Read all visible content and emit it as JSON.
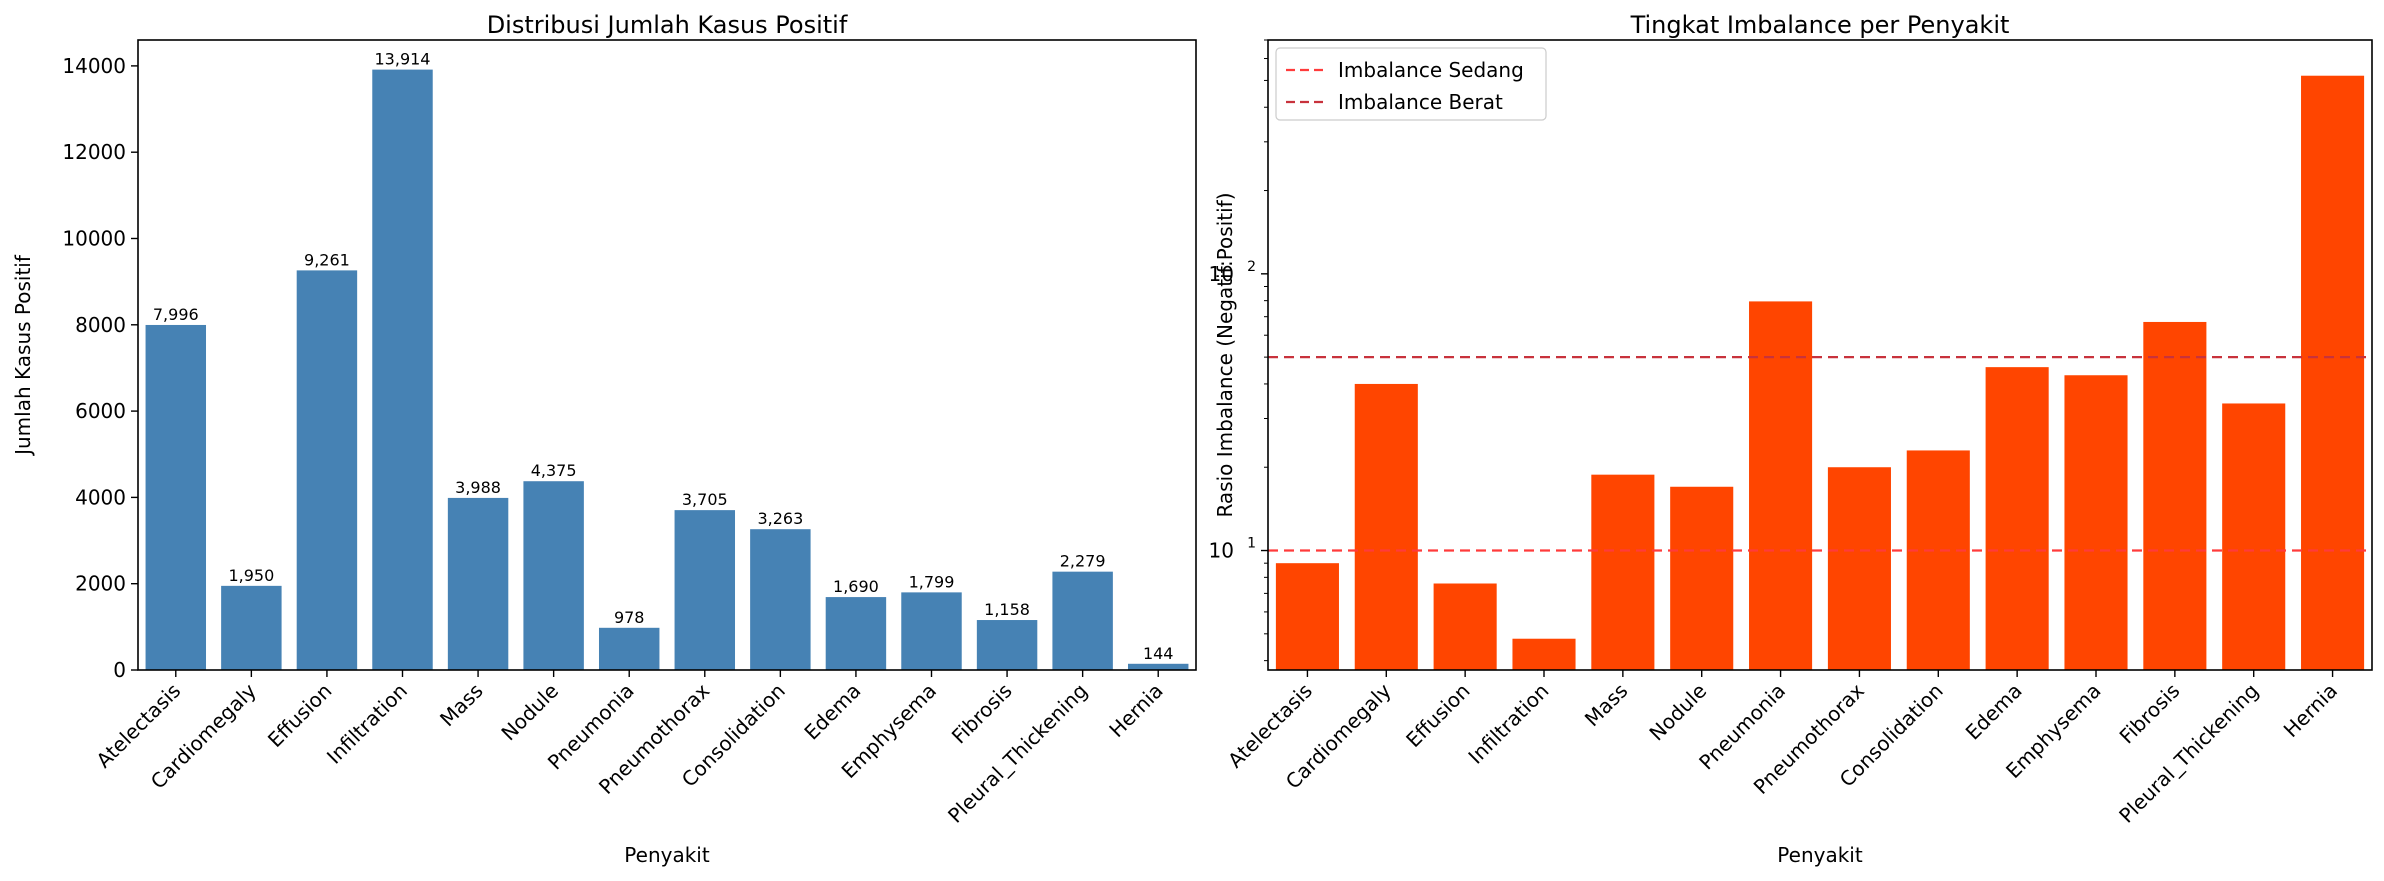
{
  "chart_data": [
    {
      "type": "bar",
      "title": "Distribusi Jumlah Kasus Positif",
      "xlabel": "Penyakit",
      "ylabel": "Jumlah Kasus Positif",
      "categories": [
        "Atelectasis",
        "Cardiomegaly",
        "Effusion",
        "Infiltration",
        "Mass",
        "Nodule",
        "Pneumonia",
        "Pneumothorax",
        "Consolidation",
        "Edema",
        "Emphysema",
        "Fibrosis",
        "Pleural_Thickening",
        "Hernia"
      ],
      "values": [
        7996,
        1950,
        9261,
        13914,
        3988,
        4375,
        978,
        3705,
        3263,
        1690,
        1799,
        1158,
        2279,
        144
      ],
      "data_labels": [
        "7,996",
        "1,950",
        "9,261",
        "13,914",
        "3,988",
        "4,375",
        "978",
        "3,705",
        "3,263",
        "1,690",
        "1,799",
        "1,158",
        "2,279",
        "144"
      ],
      "ylim": [
        0,
        14600
      ],
      "yticks": [
        0,
        2000,
        4000,
        6000,
        8000,
        10000,
        12000,
        14000
      ],
      "ytick_labels": [
        "0",
        "2000",
        "4000",
        "6000",
        "8000",
        "10000",
        "12000",
        "14000"
      ],
      "color": "#4682b4",
      "grid": false
    },
    {
      "type": "bar",
      "title": "Tingkat Imbalance per Penyakit",
      "xlabel": "Penyakit",
      "ylabel": "Rasio Imbalance (Negatif:Positif)",
      "yscale": "log",
      "categories": [
        "Atelectasis",
        "Cardiomegaly",
        "Effusion",
        "Infiltration",
        "Mass",
        "Nodule",
        "Pneumonia",
        "Pneumothorax",
        "Consolidation",
        "Edema",
        "Emphysema",
        "Fibrosis",
        "Pleural_Thickening",
        "Hernia"
      ],
      "values": [
        9.0,
        40.0,
        7.6,
        4.8,
        18.8,
        17.0,
        79.5,
        20.0,
        23.0,
        46.0,
        43.0,
        67.0,
        34.0,
        520.0
      ],
      "ylim": [
        3.7,
        700
      ],
      "yticks_major": [
        10,
        100
      ],
      "ytick_labels": [
        {
          "base": "10",
          "exp": "1"
        },
        {
          "base": "10",
          "exp": "2"
        }
      ],
      "color": "#ff4500",
      "grid": false,
      "legend_placement": "top-left",
      "hlines": [
        {
          "name": "Imbalance Sedang",
          "y": 10,
          "color": "#ff3b3b"
        },
        {
          "name": "Imbalance Berat",
          "y": 50,
          "color": "#c8323c"
        }
      ]
    }
  ]
}
